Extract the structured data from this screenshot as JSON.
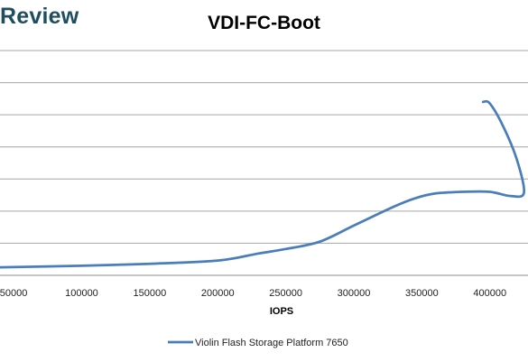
{
  "brand": {
    "label": "Review"
  },
  "chart_data": {
    "type": "line",
    "title": "VDI-FC-Boot",
    "xlabel": "IOPS",
    "ylabel": "",
    "x_ticks": [
      50000,
      100000,
      150000,
      200000,
      250000,
      300000,
      350000,
      400000
    ],
    "x_tick_labels": [
      "50000",
      "100000",
      "150000",
      "200000",
      "250000",
      "300000",
      "350000",
      "400000"
    ],
    "xlim": [
      40000,
      428000
    ],
    "ylim": [
      0,
      7
    ],
    "grid": true,
    "legend_position": "bottom",
    "series": [
      {
        "name": "Violin Flash Storage Platform 7650",
        "color": "#4a7ebb",
        "points": [
          [
            40000,
            0.25
          ],
          [
            100000,
            0.3
          ],
          [
            150000,
            0.36
          ],
          [
            200000,
            0.46
          ],
          [
            230000,
            0.68
          ],
          [
            250000,
            0.82
          ],
          [
            275000,
            1.05
          ],
          [
            300000,
            1.55
          ],
          [
            330000,
            2.15
          ],
          [
            345000,
            2.4
          ],
          [
            360000,
            2.55
          ],
          [
            380000,
            2.6
          ],
          [
            400000,
            2.6
          ],
          [
            415000,
            2.47
          ],
          [
            425000,
            2.57
          ],
          [
            420000,
            3.58
          ],
          [
            410000,
            4.62
          ],
          [
            400000,
            5.35
          ],
          [
            395000,
            5.4
          ]
        ]
      }
    ]
  }
}
